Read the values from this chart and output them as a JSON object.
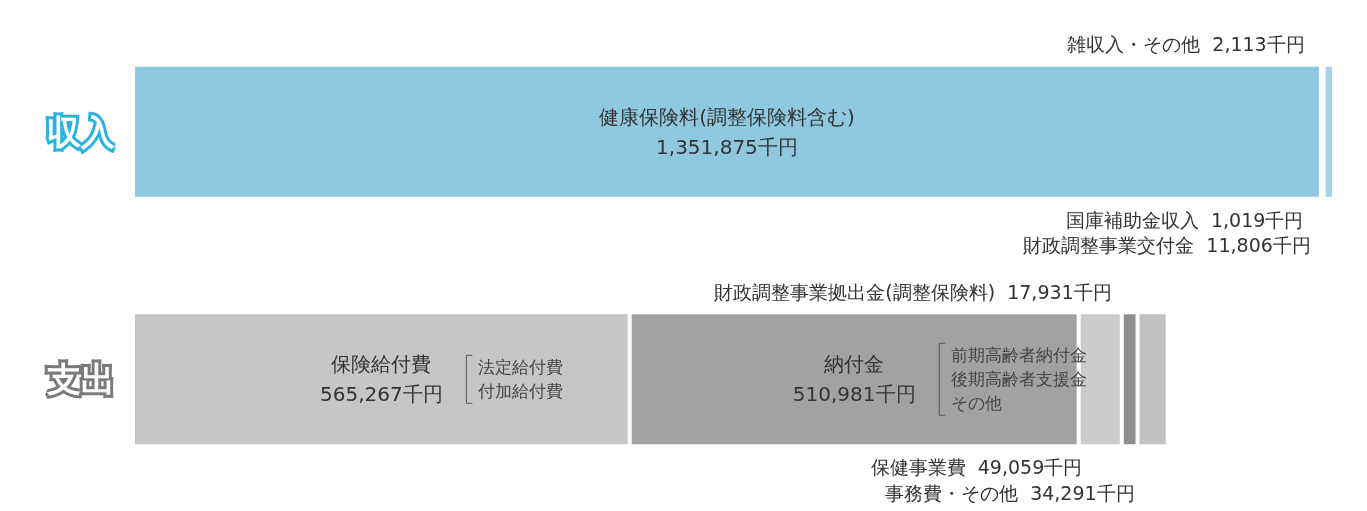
{
  "chart_data": {
    "type": "bar",
    "orientation": "horizontal",
    "stacked": true,
    "categories": [
      "収入",
      "支出"
    ],
    "series": [
      {
        "name": "健康保険料(調整保険料含む)",
        "color": "#8ec9e0",
        "values": [
          1351875,
          null
        ],
        "value_labels": [
          "1,351,875千円",
          null
        ]
      },
      {
        "name": "国庫補助金収入",
        "color": "#5eaecf",
        "values": [
          1019,
          null
        ],
        "value_labels": [
          "1,019千円",
          null
        ]
      },
      {
        "name": "雑収入・その他",
        "color": "#79bcd8",
        "values": [
          2113,
          null
        ],
        "value_labels": [
          "2,113千円",
          null
        ]
      },
      {
        "name": "財政調整事業交付金",
        "color": "#a6d3e6",
        "values": [
          11806,
          null
        ],
        "value_labels": [
          "11,806千円",
          null
        ]
      },
      {
        "name": "保険給付費",
        "color": "#c6c6c8",
        "values": [
          null,
          565267
        ],
        "value_labels": [
          null,
          "565,267千円"
        ]
      },
      {
        "name": "納付金",
        "color": "#a2a2a4",
        "values": [
          null,
          510981
        ],
        "value_labels": [
          null,
          "510,981千円"
        ]
      },
      {
        "name": "保健事業費",
        "color": "#cbcbcd",
        "values": [
          null,
          49059
        ],
        "value_labels": [
          null,
          "49,059千円"
        ]
      },
      {
        "name": "財政調整事業拠出金(調整保険料)",
        "color": "#8e8e90",
        "values": [
          null,
          17931
        ],
        "value_labels": [
          null,
          "17,931千円"
        ]
      },
      {
        "name": "事務費・その他",
        "color": "#c2c2c4",
        "values": [
          null,
          34291
        ],
        "value_labels": [
          null,
          "34,291千円"
        ]
      }
    ],
    "annotations": [
      "法定給付費",
      "付加給付費",
      "前期高齢者納付金",
      "後期高齢者支援金",
      "その他"
    ],
    "legend": false
  }
}
